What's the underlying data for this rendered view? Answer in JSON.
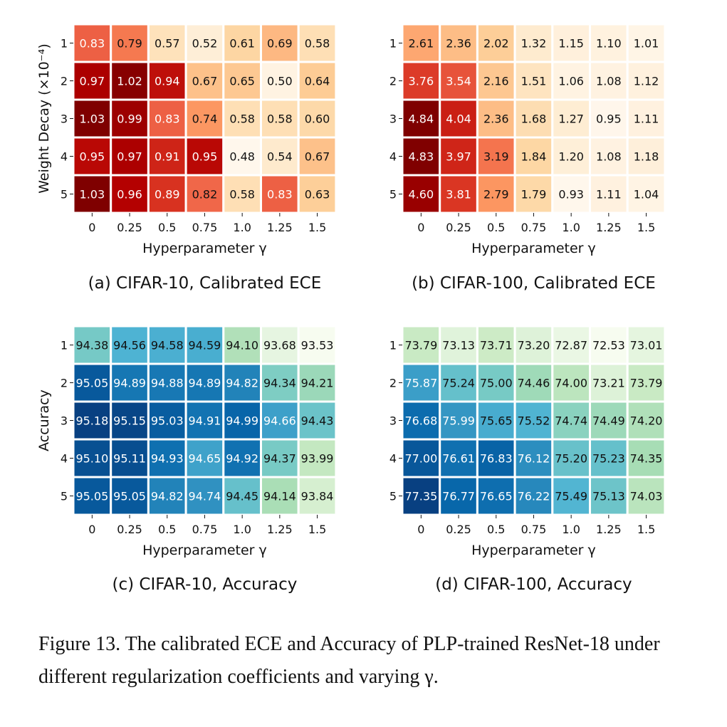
{
  "chart_data": [
    {
      "type": "heatmap",
      "caption": "(a) CIFAR-10, Calibrated ECE",
      "colormap": "OrRd",
      "x_categories": [
        "0",
        "0.25",
        "0.5",
        "0.75",
        "1.0",
        "1.25",
        "1.5"
      ],
      "y_categories": [
        "1",
        "2",
        "3",
        "4",
        "5"
      ],
      "xlabel": "Hyperparameter γ",
      "ylabel": "Weight Decay (×10⁻⁴)",
      "values": [
        [
          "0.83",
          "0.79",
          "0.57",
          "0.52",
          "0.61",
          "0.69",
          "0.58"
        ],
        [
          "0.97",
          "1.02",
          "0.94",
          "0.67",
          "0.65",
          "0.50",
          "0.64"
        ],
        [
          "1.03",
          "0.99",
          "0.83",
          "0.74",
          "0.58",
          "0.58",
          "0.60"
        ],
        [
          "0.95",
          "0.97",
          "0.91",
          "0.95",
          "0.48",
          "0.54",
          "0.67"
        ],
        [
          "1.03",
          "0.96",
          "0.89",
          "0.82",
          "0.58",
          "0.83",
          "0.63"
        ]
      ]
    },
    {
      "type": "heatmap",
      "caption": "(b) CIFAR-100, Calibrated ECE",
      "colormap": "OrRd",
      "x_categories": [
        "0",
        "0.25",
        "0.5",
        "0.75",
        "1.0",
        "1.25",
        "1.5"
      ],
      "y_categories": [
        "1",
        "2",
        "3",
        "4",
        "5"
      ],
      "xlabel": "Hyperparameter γ",
      "ylabel": "",
      "values": [
        [
          "2.61",
          "2.36",
          "2.02",
          "1.32",
          "1.15",
          "1.10",
          "1.01"
        ],
        [
          "3.76",
          "3.54",
          "2.16",
          "1.51",
          "1.06",
          "1.08",
          "1.12"
        ],
        [
          "4.84",
          "4.04",
          "2.36",
          "1.68",
          "1.27",
          "0.95",
          "1.11"
        ],
        [
          "4.83",
          "3.97",
          "3.19",
          "1.84",
          "1.20",
          "1.08",
          "1.18"
        ],
        [
          "4.60",
          "3.81",
          "2.79",
          "1.79",
          "0.93",
          "1.11",
          "1.04"
        ]
      ]
    },
    {
      "type": "heatmap",
      "caption": "(c) CIFAR-10, Accuracy",
      "colormap": "GnBu",
      "x_categories": [
        "0",
        "0.25",
        "0.5",
        "0.75",
        "1.0",
        "1.25",
        "1.5"
      ],
      "y_categories": [
        "1",
        "2",
        "3",
        "4",
        "5"
      ],
      "xlabel": "Hyperparameter γ",
      "ylabel": "Accuracy",
      "values": [
        [
          "94.38",
          "94.56",
          "94.58",
          "94.59",
          "94.10",
          "93.68",
          "93.53"
        ],
        [
          "95.05",
          "94.89",
          "94.88",
          "94.89",
          "94.82",
          "94.34",
          "94.21"
        ],
        [
          "95.18",
          "95.15",
          "95.03",
          "94.91",
          "94.99",
          "94.66",
          "94.43"
        ],
        [
          "95.10",
          "95.11",
          "94.93",
          "94.65",
          "94.92",
          "94.37",
          "93.99"
        ],
        [
          "95.05",
          "95.05",
          "94.82",
          "94.74",
          "94.45",
          "94.14",
          "93.84"
        ]
      ]
    },
    {
      "type": "heatmap",
      "caption": "(d) CIFAR-100, Accuracy",
      "colormap": "GnBu",
      "x_categories": [
        "0",
        "0.25",
        "0.5",
        "0.75",
        "1.0",
        "1.25",
        "1.5"
      ],
      "y_categories": [
        "1",
        "2",
        "3",
        "4",
        "5"
      ],
      "xlabel": "Hyperparameter γ",
      "ylabel": "",
      "values": [
        [
          "73.79",
          "73.13",
          "73.71",
          "73.20",
          "72.87",
          "72.53",
          "73.01"
        ],
        [
          "75.87",
          "75.24",
          "75.00",
          "74.46",
          "74.00",
          "73.21",
          "73.79"
        ],
        [
          "76.68",
          "75.99",
          "75.65",
          "75.52",
          "74.74",
          "74.49",
          "74.20"
        ],
        [
          "77.00",
          "76.61",
          "76.83",
          "76.12",
          "75.20",
          "75.23",
          "74.35"
        ],
        [
          "77.35",
          "76.77",
          "76.65",
          "76.22",
          "75.49",
          "75.13",
          "74.03"
        ]
      ]
    }
  ],
  "figure_caption": "Figure 13. The calibrated ECE and Accuracy of PLP-trained ResNet-18 under different regularization coefficients and varying γ."
}
